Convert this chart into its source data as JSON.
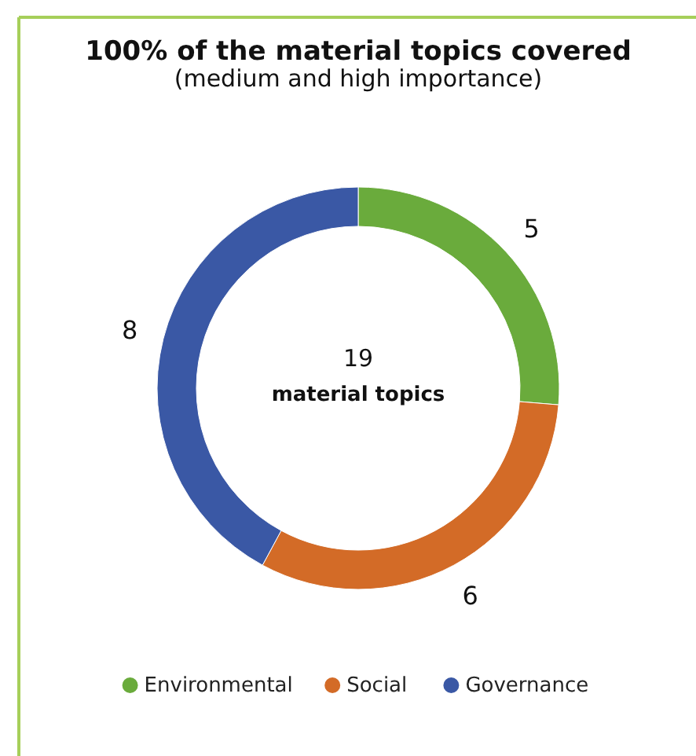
{
  "chart_data": {
    "type": "donut",
    "title": "100% of the material topics covered",
    "subtitle": "(medium and high importance)",
    "categories": [
      "Environmental",
      "Social",
      "Governance"
    ],
    "values": [
      5,
      6,
      8
    ],
    "colors": [
      "#6aab3c",
      "#d36b27",
      "#3a58a5"
    ],
    "data_labels": true,
    "legend": "bottom",
    "annotations": [
      "19",
      "material topics"
    ]
  }
}
